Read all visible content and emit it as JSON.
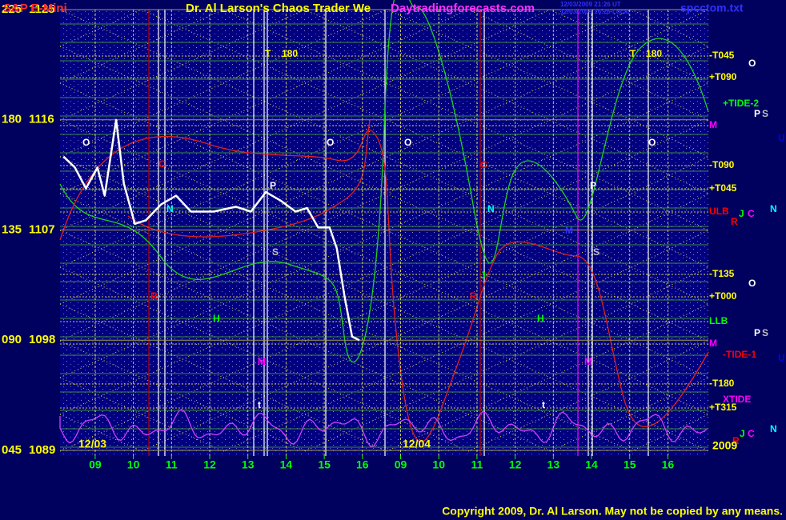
{
  "chart_data": {
    "type": "line",
    "title": "S&P E-Mini",
    "header_text": "Dr. Al Larson's Chaos Trader We",
    "site": "Daytradingforecasts.com",
    "timestamp_ut": "12/03/2009 21:26 UT",
    "timestamp_local": "12/03/2009 16:26 Local",
    "file_name": "spcctom.txt",
    "date_labels": [
      "12/03",
      "12/04",
      "2009"
    ],
    "copyright": "Copyright 2009, Dr. Al Larson. May not be copied by any means.",
    "xlim": [
      8.08,
      25.06
    ],
    "xticks": [
      {
        "value": 9,
        "label": "09"
      },
      10,
      11,
      12,
      13,
      14,
      15,
      16,
      {
        "value": 17,
        "label": "09"
      },
      {
        "value": 18,
        "label": "10"
      },
      {
        "value": 19,
        "label": "11"
      },
      {
        "value": 20,
        "label": "12"
      },
      {
        "value": 21,
        "label": "13"
      },
      {
        "value": 22,
        "label": "14"
      },
      {
        "value": 23,
        "label": "15"
      },
      {
        "value": 24,
        "label": "16"
      }
    ],
    "ylim": [
      1089,
      1125
    ],
    "yticks": [
      1089,
      1098,
      1107,
      1116,
      1125
    ],
    "y_degree_labels": [
      "045",
      "090",
      "135",
      "180",
      "225"
    ],
    "grid": true,
    "x": [
      8.17,
      8.47,
      8.76,
      9.06,
      9.25,
      9.55,
      9.75,
      10.04,
      10.33,
      10.73,
      11.12,
      11.51,
      12.1,
      12.69,
      13.08,
      13.47,
      13.86,
      14.25,
      14.55,
      14.84,
      15.14,
      15.33,
      15.53,
      15.73,
      15.92
    ],
    "series": [
      {
        "name": "S&P E-Mini",
        "color": "#ffffff",
        "values": [
          1113.0,
          1112.1,
          1110.4,
          1112.1,
          1109.8,
          1116.0,
          1110.8,
          1107.5,
          1107.8,
          1109.1,
          1109.8,
          1108.5,
          1108.5,
          1108.9,
          1108.5,
          1110.1,
          1109.4,
          1108.5,
          1108.8,
          1107.2,
          1107.2,
          1105.5,
          1101.6,
          1098.3,
          1098.0
        ]
      }
    ],
    "annotations": [
      {
        "text": "-T045",
        "color": "#ffff00"
      },
      {
        "text": "O",
        "color": "#ffffff"
      },
      {
        "text": "+T090",
        "color": "#ffff00"
      },
      {
        "text": "+TIDE-2",
        "color": "#00ff00"
      },
      {
        "text": "M",
        "color": "#ff00ff"
      },
      {
        "text": "P",
        "color": "#ffffff"
      },
      {
        "text": "S",
        "color": "#c0c0c0"
      },
      {
        "text": "U",
        "color": "#0000ff"
      },
      {
        "text": "-T090",
        "color": "#ffff00"
      },
      {
        "text": "+T045",
        "color": "#ffff00"
      },
      {
        "text": "ULB",
        "color": "#ff0000"
      },
      {
        "text": "R",
        "color": "#ff0000"
      },
      {
        "text": "J",
        "color": "#00ff00"
      },
      {
        "text": "C",
        "color": "#ff00ff"
      },
      {
        "text": "N",
        "color": "#00ffff"
      },
      {
        "text": "-T135",
        "color": "#ffff00"
      },
      {
        "text": "O",
        "color": "#ffffff"
      },
      {
        "text": "+T000",
        "color": "#ffff00"
      },
      {
        "text": "LLB",
        "color": "#00ff00"
      },
      {
        "text": "P",
        "color": "#ffffff"
      },
      {
        "text": "S",
        "color": "#c0c0c0"
      },
      {
        "text": "M",
        "color": "#ff00ff"
      },
      {
        "text": "-TIDE-1",
        "color": "#ff0000"
      },
      {
        "text": "U",
        "color": "#0000ff"
      },
      {
        "text": "-T180",
        "color": "#ffff00"
      },
      {
        "text": "XTIDE",
        "color": "#ff00ff"
      },
      {
        "text": "+T315",
        "color": "#ffff00"
      },
      {
        "text": "N",
        "color": "#00ffff"
      },
      {
        "text": "J",
        "color": "#00ff00"
      },
      {
        "text": "C",
        "color": "#ff00ff"
      },
      {
        "text": "R",
        "color": "#ff0000"
      },
      {
        "text": "T",
        "color": "#ffff00"
      },
      {
        "text": "180",
        "color": "#ffff00"
      },
      {
        "text": "T",
        "color": "#ffff00"
      },
      {
        "text": "180",
        "color": "#ffff00"
      },
      {
        "text": "O",
        "color": "#ffffff"
      },
      {
        "text": "O",
        "color": "#ffffff"
      },
      {
        "text": "O",
        "color": "#ffffff"
      },
      {
        "text": "O",
        "color": "#ffffff"
      },
      {
        "text": "C",
        "color": "#ff0000"
      },
      {
        "text": "C",
        "color": "#ff0000"
      },
      {
        "text": "P",
        "color": "#ffffff"
      },
      {
        "text": "P",
        "color": "#ffffff"
      },
      {
        "text": "N",
        "color": "#00ffff"
      },
      {
        "text": "N",
        "color": "#00ffff"
      },
      {
        "text": "M",
        "color": "#3030ff"
      },
      {
        "text": "S",
        "color": "#c0c0c0"
      },
      {
        "text": "S",
        "color": "#c0c0c0"
      },
      {
        "text": "R",
        "color": "#ff0000"
      },
      {
        "text": "R",
        "color": "#ff0000"
      },
      {
        "text": "J",
        "color": "#00ff00"
      },
      {
        "text": "H",
        "color": "#00ff00"
      },
      {
        "text": "H",
        "color": "#00ff00"
      },
      {
        "text": "M",
        "color": "#ff00ff"
      },
      {
        "text": "M",
        "color": "#ff00ff"
      },
      {
        "text": "t",
        "color": "#ffffff"
      },
      {
        "text": "t",
        "color": "#ffffff"
      }
    ]
  }
}
